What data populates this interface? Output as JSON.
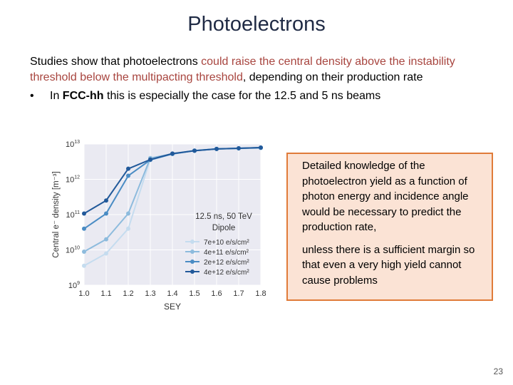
{
  "slide": {
    "title": "Photoelectrons",
    "para_part1": "Studies show that photoelectrons ",
    "para_red": "could raise the central density above the instability threshold below the multipacting threshold",
    "para_part2": ", depending on their production rate",
    "bullet_symbol": "•",
    "bullet_prefix": "In ",
    "bullet_bold": "FCC-hh",
    "bullet_rest": " this is especially the case for the 12.5 and 5 ns beams",
    "callout_p1": "Detailed knowledge of the photoelectron yield as a function of photon energy and incidence angle would be necessary to predict the production rate,",
    "callout_p2": "unless there is a sufficient margin so that even a very high yield cannot cause problems",
    "page_number": "23"
  },
  "chart_data": {
    "type": "line",
    "annotation_line1": "12.5 ns, 50 TeV",
    "annotation_line2": "Dipole",
    "xlabel": "SEY",
    "ylabel": "Central e⁻ density [m⁻³]",
    "x": [
      1.0,
      1.1,
      1.2,
      1.3,
      1.4,
      1.5,
      1.6,
      1.7,
      1.8
    ],
    "xticks": [
      "1.0",
      "1.1",
      "1.2",
      "1.3",
      "1.4",
      "1.5",
      "1.6",
      "1.7",
      "1.8"
    ],
    "xlim": [
      1.0,
      1.8
    ],
    "ylog": true,
    "ylim_exp": [
      9,
      13
    ],
    "yticks": [
      {
        "base": "10",
        "exp": "9",
        "value": 9
      },
      {
        "base": "10",
        "exp": "10",
        "value": 10
      },
      {
        "base": "10",
        "exp": "11",
        "value": 11
      },
      {
        "base": "10",
        "exp": "12",
        "value": 12
      },
      {
        "base": "10",
        "exp": "13",
        "value": 13
      }
    ],
    "grid": true,
    "legend_position": "lower-right",
    "series": [
      {
        "name": "7e+10 e/s/cm²",
        "color": "#c5dcef",
        "log10_values": [
          9.55,
          9.9,
          10.6,
          12.58,
          12.72,
          12.82,
          12.86,
          12.87,
          12.89
        ]
      },
      {
        "name": "4e+11 e/s/cm²",
        "color": "#8dbbdd",
        "log10_values": [
          9.95,
          10.3,
          11.03,
          12.6,
          12.72,
          12.81,
          12.86,
          12.88,
          12.89
        ]
      },
      {
        "name": "2e+12 e/s/cm²",
        "color": "#4a8cc4",
        "log10_values": [
          10.6,
          11.03,
          12.1,
          12.55,
          12.72,
          12.81,
          12.86,
          12.88,
          12.9
        ]
      },
      {
        "name": "4e+12 e/s/cm²",
        "color": "#21599a",
        "log10_values": [
          11.03,
          11.4,
          12.3,
          12.56,
          12.73,
          12.81,
          12.86,
          12.88,
          12.9
        ]
      }
    ]
  }
}
